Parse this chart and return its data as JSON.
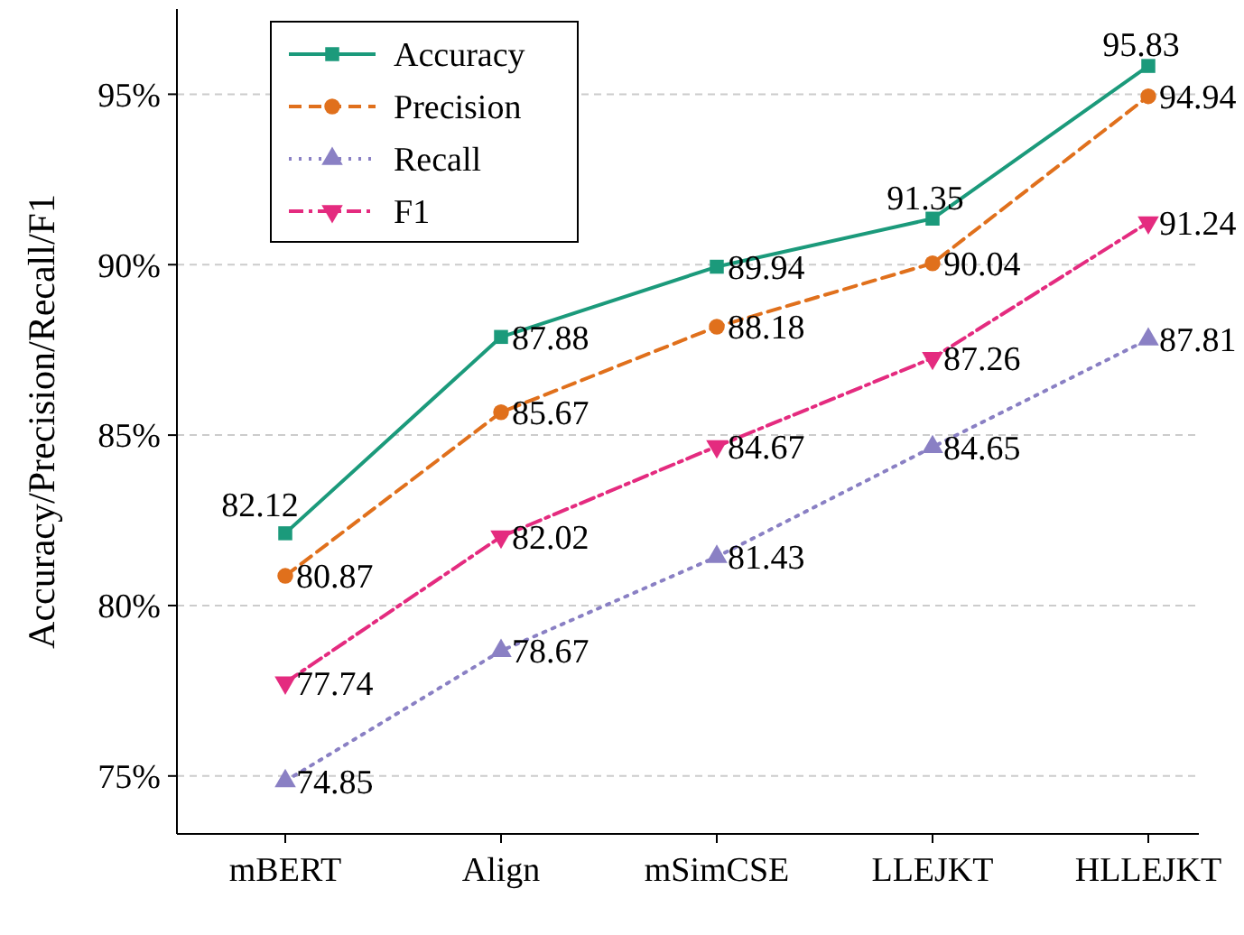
{
  "chart_data": {
    "type": "line",
    "ylabel": "Accuracy/Precision/Recall/F1",
    "categories": [
      "mBERT",
      "Align",
      "mSimCSE",
      "LLEJKT",
      "HLLEJKT"
    ],
    "series": [
      {
        "name": "Accuracy",
        "color": "#1b9a7b",
        "values": [
          82.12,
          87.88,
          89.94,
          91.35,
          95.83
        ],
        "marker": "square",
        "line_style": "solid"
      },
      {
        "name": "Precision",
        "color": "#e0701c",
        "values": [
          80.87,
          85.67,
          88.18,
          90.04,
          94.94
        ],
        "marker": "circle",
        "line_style": "dashed"
      },
      {
        "name": "Recall",
        "color": "#8a80c4",
        "values": [
          74.85,
          78.67,
          81.43,
          84.65,
          87.81
        ],
        "marker": "triangle",
        "line_style": "dotted"
      },
      {
        "name": "F1",
        "color": "#e42b7f",
        "values": [
          77.74,
          82.02,
          84.67,
          87.26,
          91.24
        ],
        "marker": "triangle-down",
        "line_style": "dashdot"
      }
    ],
    "ylim": [
      73.3,
      97.5
    ],
    "yticks": [
      {
        "value": 75,
        "label": "75%"
      },
      {
        "value": 80,
        "label": "80%"
      },
      {
        "value": 85,
        "label": "85%"
      },
      {
        "value": 90,
        "label": "90%"
      },
      {
        "value": 95,
        "label": "95%"
      }
    ],
    "grid": "y",
    "legend": "top left",
    "data_labels": true
  }
}
